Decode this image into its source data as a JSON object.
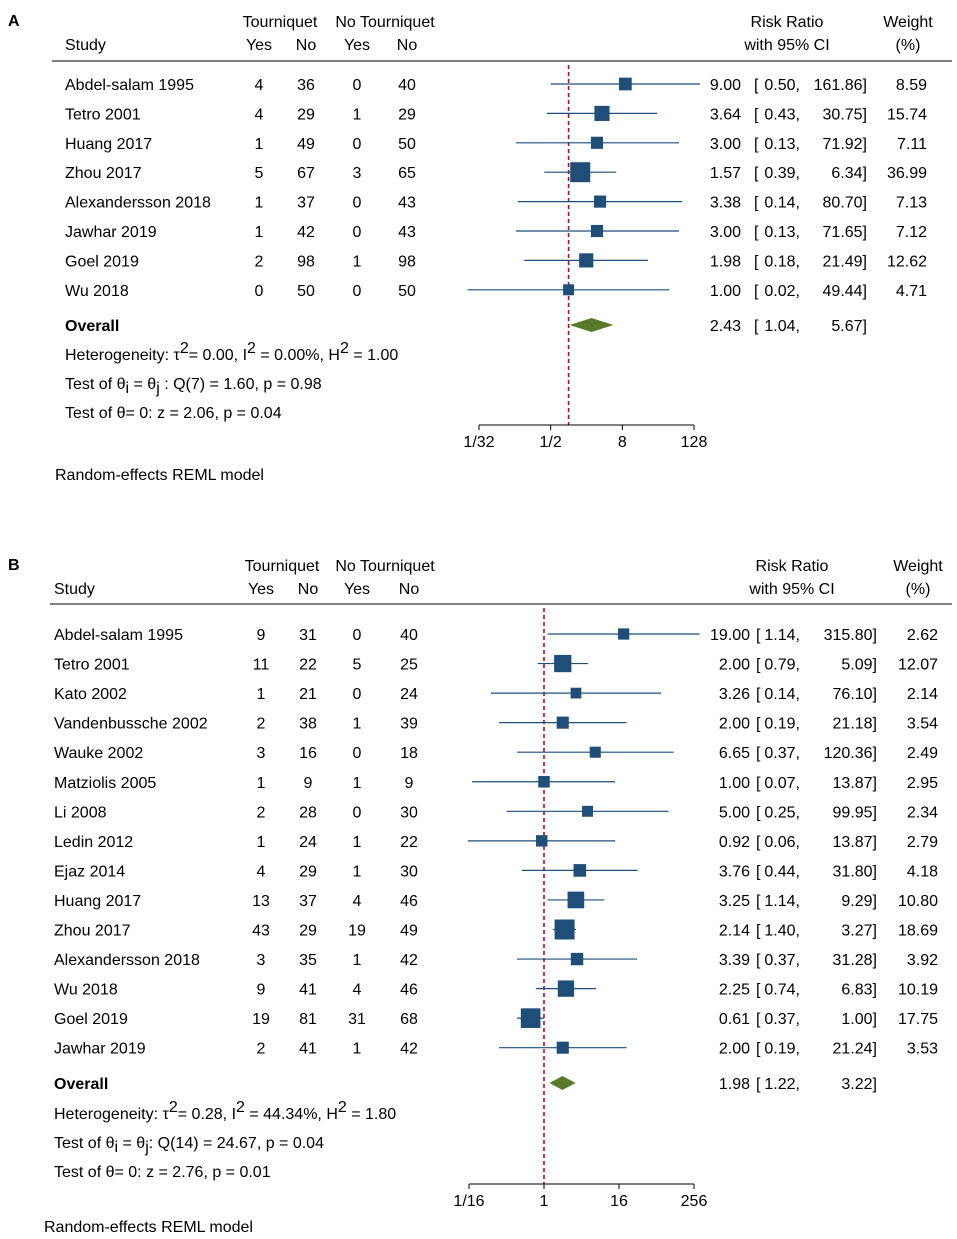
{
  "colors": {
    "ci": "#1f4e79",
    "diamond": "#5a7a2b",
    "refline": "#c00030"
  },
  "chart_data": [
    {
      "panel": "A",
      "type": "forest",
      "scale": "log2",
      "xlim": [
        0.03125,
        128
      ],
      "null_value": 1,
      "ticks": [
        0.03125,
        0.5,
        8,
        128
      ],
      "tick_labels": [
        "1/32",
        "1/2",
        "8",
        "128"
      ],
      "header": {
        "study": "Study",
        "group1": "Tourniquet",
        "group2": "No Tourniquet",
        "yes": "Yes",
        "no": "No",
        "rr_top": "Risk Ratio",
        "rr_bottom": "with 95% CI",
        "wt_top": "Weight",
        "wt_bottom": "(%)"
      },
      "studies": [
        {
          "name": "Abdel-salam 1995",
          "t_yes": "4",
          "t_no": "36",
          "n_yes": "0",
          "n_no": "40",
          "rr": 9.0,
          "lo": 0.5,
          "hi": 161.86,
          "rr_text": "9.00",
          "lo_text": "0.50,",
          "hi_text": "161.86]",
          "weight": "8.59"
        },
        {
          "name": "Tetro 2001",
          "t_yes": "4",
          "t_no": "29",
          "n_yes": "1",
          "n_no": "29",
          "rr": 3.64,
          "lo": 0.43,
          "hi": 30.75,
          "rr_text": "3.64",
          "lo_text": "0.43,",
          "hi_text": "30.75]",
          "weight": "15.74"
        },
        {
          "name": "Huang 2017",
          "t_yes": "1",
          "t_no": "49",
          "n_yes": "0",
          "n_no": "50",
          "rr": 3.0,
          "lo": 0.13,
          "hi": 71.92,
          "rr_text": "3.00",
          "lo_text": "0.13,",
          "hi_text": "71.92]",
          "weight": "7.11"
        },
        {
          "name": "Zhou 2017",
          "t_yes": "5",
          "t_no": "67",
          "n_yes": "3",
          "n_no": "65",
          "rr": 1.57,
          "lo": 0.39,
          "hi": 6.34,
          "rr_text": "1.57",
          "lo_text": "0.39,",
          "hi_text": "6.34]",
          "weight": "36.99"
        },
        {
          "name": "Alexandersson 2018",
          "t_yes": "1",
          "t_no": "37",
          "n_yes": "0",
          "n_no": "43",
          "rr": 3.38,
          "lo": 0.14,
          "hi": 80.7,
          "rr_text": "3.38",
          "lo_text": "0.14,",
          "hi_text": "80.70]",
          "weight": "7.13"
        },
        {
          "name": "Jawhar 2019",
          "t_yes": "1",
          "t_no": "42",
          "n_yes": "0",
          "n_no": "43",
          "rr": 3.0,
          "lo": 0.13,
          "hi": 71.65,
          "rr_text": "3.00",
          "lo_text": "0.13,",
          "hi_text": "71.65]",
          "weight": "7.12"
        },
        {
          "name": "Goel  2019",
          "t_yes": "2",
          "t_no": "98",
          "n_yes": "1",
          "n_no": "98",
          "rr": 1.98,
          "lo": 0.18,
          "hi": 21.49,
          "rr_text": "1.98",
          "lo_text": "0.18,",
          "hi_text": "21.49]",
          "weight": "12.62"
        },
        {
          "name": "Wu 2018",
          "t_yes": "0",
          "t_no": "50",
          "n_yes": "0",
          "n_no": "50",
          "rr": 1.0,
          "lo": 0.02,
          "hi": 49.44,
          "rr_text": "1.00",
          "lo_text": "0.02,",
          "hi_text": "49.44]",
          "weight": "4.71"
        }
      ],
      "overall": {
        "label": "Overall",
        "rr": 2.43,
        "lo": 1.04,
        "hi": 5.67,
        "rr_text": "2.43",
        "lo_text": "1.04,",
        "hi_text": "5.67]"
      },
      "heterogeneity": {
        "prefix": "Heterogeneity: ",
        "tau": "τ",
        "tau_sup": "2",
        "tau_rest": "= 0.00, I",
        "i_sup": "2",
        "rest": " = 0.00%, H",
        "h_sup": "2",
        "end": " = 1.00"
      },
      "test_eq": {
        "prefix": "Test of ",
        "theta": "θ",
        "sub_i": "i",
        "eq": " = ",
        "sub_j": "j",
        "rest": " : Q(7) = 1.60, p = 0.98"
      },
      "test_zero": {
        "prefix": "Test of ",
        "theta": "θ",
        "rest": "= 0: z = 2.06, p = 0.04"
      },
      "model": "Random-effects REML model"
    },
    {
      "panel": "B",
      "type": "forest",
      "scale": "log2",
      "xlim": [
        0.0625,
        256
      ],
      "null_value": 1,
      "ticks": [
        0.0625,
        1,
        16,
        256
      ],
      "tick_labels": [
        "1/16",
        "1",
        "16",
        "256"
      ],
      "header": {
        "study": "Study",
        "group1": "Tourniquet",
        "group2": "No Tourniquet",
        "yes": "Yes",
        "no": "No",
        "rr_top": "Risk Ratio",
        "rr_bottom": "with 95% CI",
        "wt_top": "Weight",
        "wt_bottom": "(%)"
      },
      "studies": [
        {
          "name": "Abdel-salam 1995",
          "t_yes": "9",
          "t_no": "31",
          "n_yes": "0",
          "n_no": "40",
          "rr": 19.0,
          "lo": 1.14,
          "hi": 315.8,
          "rr_text": "19.00",
          "lo_text": "1.14,",
          "hi_text": "315.80]",
          "weight": "2.62"
        },
        {
          "name": "Tetro 2001",
          "t_yes": "11",
          "t_no": "22",
          "n_yes": "5",
          "n_no": "25",
          "rr": 2.0,
          "lo": 0.79,
          "hi": 5.09,
          "rr_text": "2.00",
          "lo_text": "0.79,",
          "hi_text": "5.09]",
          "weight": "12.07"
        },
        {
          "name": "Kato 2002",
          "t_yes": "1",
          "t_no": "21",
          "n_yes": "0",
          "n_no": "24",
          "rr": 3.26,
          "lo": 0.14,
          "hi": 76.1,
          "rr_text": "3.26",
          "lo_text": "0.14,",
          "hi_text": "76.10]",
          "weight": "2.14"
        },
        {
          "name": "Vandenbussche 2002",
          "t_yes": "2",
          "t_no": "38",
          "n_yes": "1",
          "n_no": "39",
          "rr": 2.0,
          "lo": 0.19,
          "hi": 21.18,
          "rr_text": "2.00",
          "lo_text": "0.19,",
          "hi_text": "21.18]",
          "weight": "3.54"
        },
        {
          "name": "Wauke 2002",
          "t_yes": "3",
          "t_no": "16",
          "n_yes": "0",
          "n_no": "18",
          "rr": 6.65,
          "lo": 0.37,
          "hi": 120.36,
          "rr_text": "6.65",
          "lo_text": "0.37,",
          "hi_text": "120.36]",
          "weight": "2.49"
        },
        {
          "name": "Matziolis 2005",
          "t_yes": "1",
          "t_no": "9",
          "n_yes": "1",
          "n_no": "9",
          "rr": 1.0,
          "lo": 0.07,
          "hi": 13.87,
          "rr_text": "1.00",
          "lo_text": "0.07,",
          "hi_text": "13.87]",
          "weight": "2.95"
        },
        {
          "name": "Li 2008",
          "t_yes": "2",
          "t_no": "28",
          "n_yes": "0",
          "n_no": "30",
          "rr": 5.0,
          "lo": 0.25,
          "hi": 99.95,
          "rr_text": "5.00",
          "lo_text": "0.25,",
          "hi_text": "99.95]",
          "weight": "2.34"
        },
        {
          "name": "Ledin   2012",
          "t_yes": "1",
          "t_no": "24",
          "n_yes": "1",
          "n_no": "22",
          "rr": 0.92,
          "lo": 0.06,
          "hi": 13.87,
          "rr_text": "0.92",
          "lo_text": "0.06,",
          "hi_text": "13.87]",
          "weight": "2.79"
        },
        {
          "name": "Ejaz 2014",
          "t_yes": "4",
          "t_no": "29",
          "n_yes": "1",
          "n_no": "30",
          "rr": 3.76,
          "lo": 0.44,
          "hi": 31.8,
          "rr_text": "3.76",
          "lo_text": "0.44,",
          "hi_text": "31.80]",
          "weight": "4.18"
        },
        {
          "name": "Huang 2017",
          "t_yes": "13",
          "t_no": "37",
          "n_yes": "4",
          "n_no": "46",
          "rr": 3.25,
          "lo": 1.14,
          "hi": 9.29,
          "rr_text": "3.25",
          "lo_text": "1.14,",
          "hi_text": "9.29]",
          "weight": "10.80"
        },
        {
          "name": "Zhou 2017",
          "t_yes": "43",
          "t_no": "29",
          "n_yes": "19",
          "n_no": "49",
          "rr": 2.14,
          "lo": 1.4,
          "hi": 3.27,
          "rr_text": "2.14",
          "lo_text": "1.40,",
          "hi_text": "3.27]",
          "weight": "18.69"
        },
        {
          "name": "Alexandersson 2018",
          "t_yes": "3",
          "t_no": "35",
          "n_yes": "1",
          "n_no": "42",
          "rr": 3.39,
          "lo": 0.37,
          "hi": 31.28,
          "rr_text": "3.39",
          "lo_text": "0.37,",
          "hi_text": "31.28]",
          "weight": "3.92"
        },
        {
          "name": "Wu 2018",
          "t_yes": "9",
          "t_no": "41",
          "n_yes": "4",
          "n_no": "46",
          "rr": 2.25,
          "lo": 0.74,
          "hi": 6.83,
          "rr_text": "2.25",
          "lo_text": "0.74,",
          "hi_text": "6.83]",
          "weight": "10.19"
        },
        {
          "name": "Goel  2019",
          "t_yes": "19",
          "t_no": "81",
          "n_yes": "31",
          "n_no": "68",
          "rr": 0.61,
          "lo": 0.37,
          "hi": 1.0,
          "rr_text": "0.61",
          "lo_text": "0.37,",
          "hi_text": "1.00]",
          "weight": "17.75"
        },
        {
          "name": "Jawhar 2019",
          "t_yes": "2",
          "t_no": "41",
          "n_yes": "1",
          "n_no": "42",
          "rr": 2.0,
          "lo": 0.19,
          "hi": 21.24,
          "rr_text": "2.00",
          "lo_text": "0.19,",
          "hi_text": "21.24]",
          "weight": "3.53"
        }
      ],
      "overall": {
        "label": "Overall",
        "rr": 1.98,
        "lo": 1.22,
        "hi": 3.22,
        "rr_text": "1.98",
        "lo_text": "1.22,",
        "hi_text": "3.22]"
      },
      "heterogeneity": {
        "prefix": "Heterogeneity: ",
        "tau": "τ",
        "tau_sup": "2",
        "tau_rest": "= 0.28, I",
        "i_sup": "2",
        "rest": " = 44.34%, H",
        "h_sup": "2",
        "end": " = 1.80"
      },
      "test_eq": {
        "prefix": "Test of ",
        "theta": "θ",
        "sub_i": "i",
        "eq": " = ",
        "sub_j": "j",
        "rest": ": Q(14) = 24.67, p = 0.04"
      },
      "test_zero": {
        "prefix": "Test of ",
        "theta": "θ",
        "rest": "= 0: z = 2.76, p = 0.01"
      },
      "model": "Random-effects REML model"
    }
  ]
}
